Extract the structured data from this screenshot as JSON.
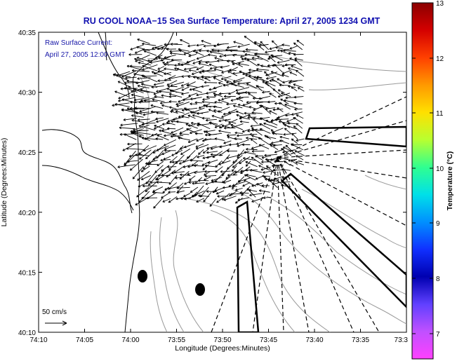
{
  "title": "RU COOL  NOAA−15  Sea Surface Temperature:  April 27, 2005 1234 GMT",
  "legend": {
    "line1": "Raw Surface Current:",
    "line2": "April 27, 2005 12:00 GMT",
    "scale_label": "50 cm/s"
  },
  "axes": {
    "xlabel": "Longitude (Degrees:Minutes)",
    "ylabel": "Latitude (Degrees:Minutes)",
    "x_ticks": [
      "74:10",
      "74:05",
      "74:00",
      "73:55",
      "73:50",
      "73:45",
      "73:40",
      "73:35",
      "73:3"
    ],
    "y_ticks": [
      "40:35",
      "40:30",
      "40:25",
      "40:20",
      "40:15",
      "40:10"
    ]
  },
  "colorbar": {
    "label": "Temperature (°C)",
    "ticks": [
      "13",
      "12",
      "11",
      "10",
      "9",
      "8",
      "7"
    ],
    "colors": [
      "#8b0000",
      "#d40000",
      "#ff4000",
      "#ff9900",
      "#ffe000",
      "#b8ff30",
      "#30ff90",
      "#00e0e8",
      "#0090ff",
      "#1030ff",
      "#0000b0",
      "#6040ff",
      "#c050ff",
      "#ff40ff"
    ]
  },
  "colors": {
    "title": "#1010b0",
    "legend_text": "#1818a8",
    "vector": "#000000",
    "bathymetry": "#9a9a9a"
  }
}
